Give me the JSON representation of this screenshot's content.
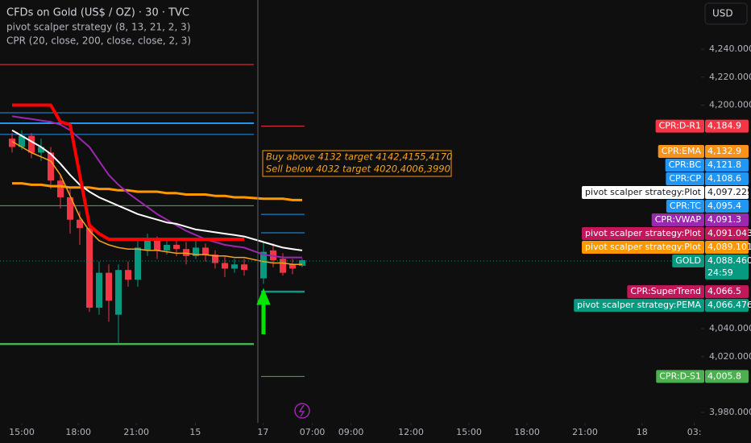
{
  "header": {
    "title": "CFDs on Gold (US$ / OZ) · 30 · TVC",
    "indicators": [
      "pivot scalper strategy (8, 13, 21, 2, 3)",
      "CPR (20, close, 200, close, close, 2, 3)"
    ],
    "currency": "USD"
  },
  "chart_data": {
    "type": "candlestick",
    "x": [
      1.25,
      2.25,
      3.25,
      4.25,
      5.25,
      6.25,
      7.25,
      8.25,
      9.25,
      10.25,
      11.25,
      12.25,
      13.25,
      14.25,
      15.25,
      16.25,
      17.25,
      18.25,
      19.25,
      20.25,
      21.25,
      22.25,
      23.25,
      24.25,
      25.25,
      27.25,
      28.25,
      29.25,
      30.25,
      31.25
    ],
    "open": [
      4176,
      4170,
      4178,
      4166,
      4166,
      4146,
      4134,
      4118,
      4112,
      4055,
      4080,
      4050,
      4082,
      4075,
      4096,
      4103,
      4096,
      4100,
      4097,
      4092,
      4098,
      4093,
      4087,
      4083,
      4086,
      4076,
      4096,
      4090,
      4086,
      4085
    ],
    "high": [
      4180,
      4182,
      4180,
      4176,
      4170,
      4150,
      4140,
      4124,
      4116,
      4088,
      4086,
      4086,
      4088,
      4104,
      4108,
      4106,
      4104,
      4103,
      4102,
      4104,
      4101,
      4096,
      4092,
      4090,
      4090,
      4102,
      4101,
      4094,
      4090,
      4090
    ],
    "low": [
      4166,
      4168,
      4162,
      4160,
      4140,
      4126,
      4108,
      4100,
      4052,
      4050,
      4045,
      4030,
      4070,
      4070,
      4092,
      4090,
      4093,
      4092,
      4086,
      4090,
      4088,
      4083,
      4077,
      4080,
      4078,
      4072,
      4084,
      4078,
      4079,
      4084
    ],
    "close": [
      4170,
      4178,
      4166,
      4170,
      4146,
      4134,
      4118,
      4112,
      4055,
      4080,
      4060,
      4082,
      4075,
      4098,
      4103,
      4096,
      4100,
      4097,
      4092,
      4098,
      4093,
      4087,
      4083,
      4086,
      4082,
      4095,
      4089,
      4080,
      4083,
      4089
    ],
    "up_color": "#089981",
    "down_color": "#f23645",
    "xlim": [
      0,
      72.5
    ],
    "ylim": [
      3972.6,
      4275.2
    ],
    "xticks": [
      {
        "value": 2.25,
        "label": "15:00"
      },
      {
        "value": 8.1,
        "label": "18:00"
      },
      {
        "value": 14.1,
        "label": "21:00"
      },
      {
        "value": 20.2,
        "label": "15"
      },
      {
        "value": 27.2,
        "label": "17"
      },
      {
        "value": 32.3,
        "label": "07:00"
      },
      {
        "value": 36.3,
        "label": "09:00"
      },
      {
        "value": 42.5,
        "label": "12:00"
      },
      {
        "value": 48.5,
        "label": "15:00"
      },
      {
        "value": 54.5,
        "label": "18:00"
      },
      {
        "value": 60.5,
        "label": "21:00"
      },
      {
        "value": 66.4,
        "label": "18"
      },
      {
        "value": 71.8,
        "label": "03:"
      }
    ],
    "yticks": [
      {
        "value": 4240,
        "label": "4,240.000"
      },
      {
        "value": 4220,
        "label": "4,220.000"
      },
      {
        "value": 4200,
        "label": "4,200.000"
      },
      {
        "value": 4040,
        "label": "4,040.000"
      },
      {
        "value": 4020,
        "label": "4,020.000"
      },
      {
        "value": 3980,
        "label": "3,980.000"
      }
    ],
    "lines": [
      {
        "color": "#ff9800",
        "width": 3,
        "values": [
          4144,
          4144,
          4143,
          4143,
          4142,
          4142,
          4141,
          4141,
          4141,
          4140,
          4140,
          4139,
          4139,
          4138,
          4138,
          4138,
          4137,
          4137,
          4136,
          4136,
          4136,
          4135,
          4135,
          4134,
          4134,
          4133,
          4133,
          4133,
          4132,
          4132
        ]
      },
      {
        "color": "#9c27b0",
        "width": 2,
        "values": [
          4192,
          4191,
          4190,
          4189,
          4188,
          4186,
          4182,
          4176,
          4170,
          4160,
          4150,
          4143,
          4137,
          4132,
          4127,
          4122,
          4118,
          4114,
          4110,
          4107,
          4104,
          4102,
          4100,
          4099,
          4098,
          4093,
          4092,
          4091,
          4091,
          4091
        ]
      },
      {
        "color": "#f7a21b",
        "width": 1.5,
        "values": [
          4174,
          4170,
          4166,
          4163,
          4160,
          4150,
          4135,
          4120,
          4110,
          4103,
          4100,
          4098,
          4097,
          4097,
          4096,
          4096,
          4095,
          4094,
          4094,
          4093,
          4093,
          4092,
          4092,
          4091,
          4091,
          4088,
          4087,
          4087,
          4086,
          4086
        ]
      },
      {
        "color": "#ffffff",
        "width": 2,
        "values": [
          4182,
          4178,
          4174,
          4170,
          4165,
          4158,
          4150,
          4143,
          4138,
          4134,
          4131,
          4128,
          4125,
          4122,
          4120,
          4118,
          4116,
          4115,
          4113,
          4111,
          4110,
          4109,
          4108,
          4107,
          4106,
          4102,
          4100,
          4098,
          4097,
          4096
        ]
      },
      {
        "color": "#ff0000",
        "width": 4,
        "values": [
          4200,
          4200,
          4200,
          4200,
          4200,
          4188,
          4186,
          4150,
          4114,
          4108,
          4104,
          4104,
          4104,
          4104,
          4104,
          4104,
          4104,
          4104,
          4104,
          4104,
          4104,
          4104,
          4104,
          4104,
          4104,
          null,
          null,
          null,
          null,
          null
        ]
      }
    ],
    "levels": [
      {
        "value": 4229,
        "color": "#f23645",
        "width": 1,
        "from": 0,
        "to": 26.25
      },
      {
        "value": 4194.5,
        "color": "#2196f3",
        "width": 1,
        "from": 0,
        "to": 26.25
      },
      {
        "value": 4187,
        "color": "#2196f3",
        "width": 2,
        "from": 0,
        "to": 26.25
      },
      {
        "value": 4179,
        "color": "#2196f3",
        "width": 1,
        "from": 0,
        "to": 26.25
      },
      {
        "value": 4128,
        "color": "#4caf50",
        "width": 1,
        "from": 0,
        "to": 26.25
      },
      {
        "value": 4029,
        "color": "#4caf50",
        "width": 2.5,
        "from": 0,
        "to": 26.25
      },
      {
        "value": 4184.9,
        "color": "#f23645",
        "width": 1,
        "from": 27,
        "to": 31.5
      },
      {
        "value": 4121.8,
        "color": "#2196f3",
        "width": 1,
        "from": 27,
        "to": 31.5
      },
      {
        "value": 4108.6,
        "color": "#2196f3",
        "width": 1,
        "from": 27,
        "to": 31.5
      },
      {
        "value": 4066.5,
        "color": "#089981",
        "width": 2.5,
        "from": 27,
        "to": 31.5
      },
      {
        "value": 4005.8,
        "color": "#4caf50",
        "width": 1,
        "from": 27,
        "to": 31.5
      }
    ],
    "price_tags": [
      {
        "name": "CPR:D-R1",
        "value": 4184.9,
        "label": "4,184.9",
        "color": "#f23645"
      },
      {
        "name": "CPR:EMA",
        "value": 4132.9,
        "label": "4,132.9",
        "color": "#f7931a"
      },
      {
        "name": "CPR:BC",
        "value": 4121.8,
        "label": "4,121.8",
        "color": "#2196f3"
      },
      {
        "name": "CPR:CP",
        "value": 4108.6,
        "label": "4,108.6",
        "color": "#2196f3"
      },
      {
        "name": "pivot scalper strategy:Plot",
        "value": 4097.225,
        "label": "4,097.225",
        "color": "#ffffff",
        "text_color": "#131722"
      },
      {
        "name": "CPR:TC",
        "value": 4095.4,
        "label": "4,095.4",
        "color": "#2196f3"
      },
      {
        "name": "CPR:VWAP",
        "value": 4091.3,
        "label": "4,091.3",
        "color": "#9c27b0"
      },
      {
        "name": "pivot scalper strategy:Plot",
        "value": 4091.043,
        "label": "4,091.043",
        "color": "#c2185b"
      },
      {
        "name": "pivot scalper strategy:Plot",
        "value": 4089.101,
        "label": "4,089.101",
        "color": "#ff9800"
      },
      {
        "name": "GOLD",
        "value": 4088.46,
        "label": "4,088.460",
        "color": "#089981",
        "countdown": "24:59"
      },
      {
        "name": "CPR:SuperTrend",
        "value": 4066.5,
        "label": "4,066.5",
        "color": "#c2185b"
      },
      {
        "name": "pivot scalper strategy:PEMA",
        "value": 4066.476,
        "label": "4,066.476",
        "color": "#089981"
      },
      {
        "name": "CPR:D-S1",
        "value": 4005.8,
        "label": "4,005.8",
        "color": "#4caf50"
      }
    ],
    "annotation": [
      "Buy above 4132 target 4142,4155,4170",
      "Sell below 4032 target 4020,4006,3990"
    ]
  }
}
